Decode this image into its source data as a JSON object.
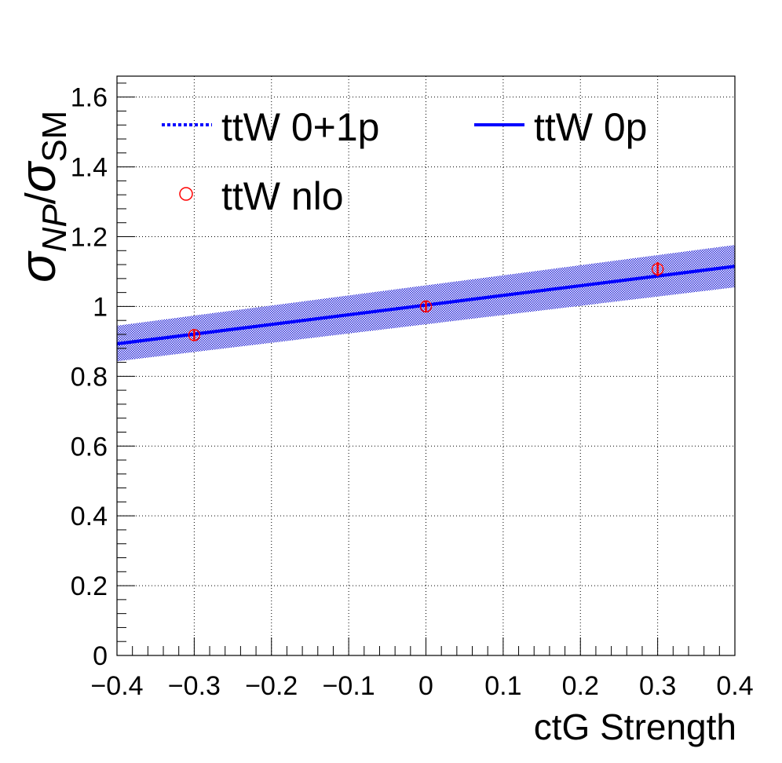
{
  "chart_data": {
    "type": "line",
    "xlabel": "ctG Strength",
    "ylabel_main": "σ",
    "ylabel_sub1": "NP",
    "ylabel_slash": "/",
    "ylabel_main2": "σ",
    "ylabel_sub2": "SM",
    "xlim": [
      -0.4,
      0.4
    ],
    "ylim": [
      0,
      1.66
    ],
    "x_ticks": [
      -0.4,
      -0.3,
      -0.2,
      -0.1,
      0,
      0.1,
      0.2,
      0.3,
      0.4
    ],
    "x_tick_labels": [
      "−0.4",
      "−0.3",
      "−0.2",
      "−0.1",
      "0",
      "0.1",
      "0.2",
      "0.3",
      "0.4"
    ],
    "y_ticks": [
      0,
      0.2,
      0.4,
      0.6,
      0.8,
      1,
      1.2,
      1.4,
      1.6
    ],
    "y_tick_labels": [
      "0",
      "0.2",
      "0.4",
      "0.6",
      "0.8",
      "1",
      "1.2",
      "1.4",
      "1.6"
    ],
    "grid": true,
    "legend_position": "top-left",
    "series": [
      {
        "name": "ttW 0+1p",
        "style": "dotted",
        "color": "#0000ff",
        "x": [
          -0.4,
          0.4
        ],
        "y": [
          0.893,
          1.115
        ],
        "band_lower": [
          0.843,
          1.055
        ],
        "band_upper": [
          0.945,
          1.176
        ]
      },
      {
        "name": "ttW 0p",
        "style": "solid",
        "color": "#0000ff",
        "x": [
          -0.4,
          0.4
        ],
        "y": [
          0.893,
          1.115
        ]
      },
      {
        "name": "ttW nlo",
        "style": "marker",
        "color": "#ff0000",
        "x": [
          -0.3,
          0,
          0.3
        ],
        "y": [
          0.918,
          1.0,
          1.107
        ],
        "err": [
          0.015,
          0.015,
          0.02
        ]
      }
    ]
  }
}
